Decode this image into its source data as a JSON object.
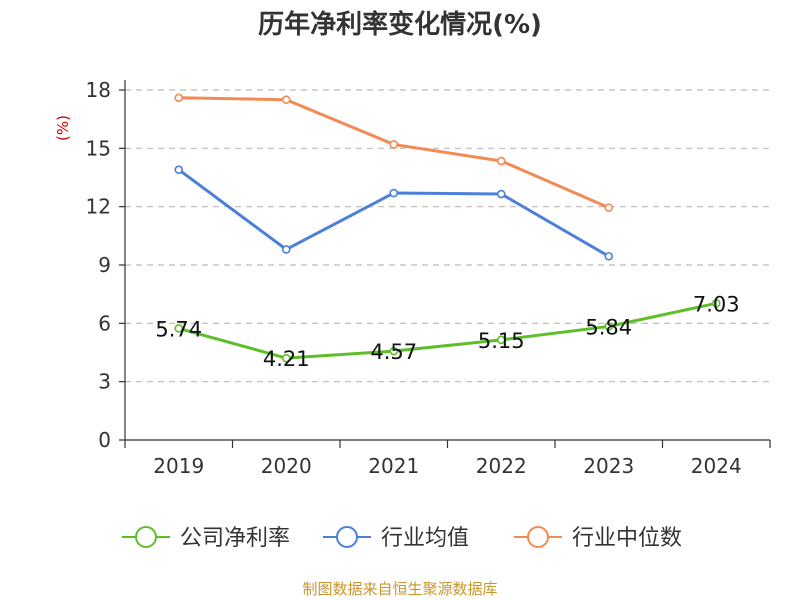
{
  "title": "历年净利率变化情况(%)",
  "source": "制图数据来自恒生聚源数据库",
  "chart_data": {
    "type": "line",
    "title": "历年净利率变化情况(%)",
    "ylabel": "(%)",
    "xlabel": "",
    "categories": [
      "2019",
      "2020",
      "2021",
      "2022",
      "2023",
      "2024"
    ],
    "ylim": [
      0,
      18
    ],
    "yticks": [
      0,
      3,
      6,
      9,
      12,
      15,
      18
    ],
    "grid": true,
    "legend": "bottom",
    "series": [
      {
        "name": "公司净利率",
        "color": "#5cbf2a",
        "labels": true,
        "values": [
          5.74,
          4.21,
          4.57,
          5.15,
          5.84,
          7.03
        ],
        "value_labels": [
          "5.74",
          "4.21",
          "4.57",
          "5.15",
          "5.84",
          "7.03"
        ]
      },
      {
        "name": "行业均值",
        "color": "#4b7fd9",
        "labels": false,
        "values": [
          13.9,
          9.8,
          12.7,
          12.65,
          9.45,
          null
        ]
      },
      {
        "name": "行业中位数",
        "color": "#f38a55",
        "labels": false,
        "values": [
          17.6,
          17.5,
          15.2,
          14.35,
          11.95,
          null
        ]
      }
    ]
  }
}
